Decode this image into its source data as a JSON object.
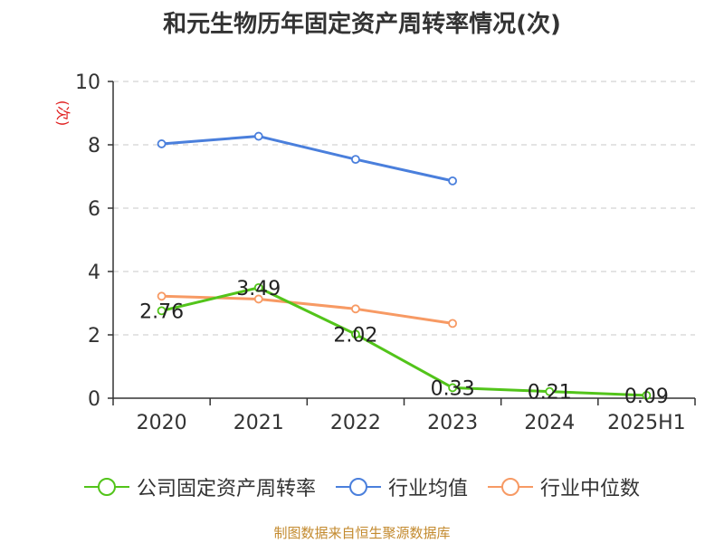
{
  "chart_data": {
    "type": "line",
    "title": "和元生物历年固定资产周转率情况(次)",
    "ylabel": "(次)",
    "xlabel": "",
    "categories": [
      "2020",
      "2021",
      "2022",
      "2023",
      "2024",
      "2025H1"
    ],
    "ylim": [
      0,
      10
    ],
    "yticks": [
      0,
      2,
      4,
      6,
      8,
      10
    ],
    "grid": true,
    "legend_position": "bottom",
    "series": [
      {
        "name": "公司固定资产周转率",
        "color": "#52c41a",
        "values": [
          2.76,
          3.49,
          2.02,
          0.33,
          0.21,
          0.09
        ],
        "labels": [
          "2.76",
          "3.49",
          "2.02",
          "0.33",
          "0.21",
          "0.09"
        ]
      },
      {
        "name": "行业均值",
        "color": "#4a7fdc",
        "values": [
          8.03,
          8.27,
          7.54,
          6.86,
          null,
          null
        ]
      },
      {
        "name": "行业中位数",
        "color": "#f79a64",
        "values": [
          3.22,
          3.13,
          2.82,
          2.36,
          null,
          null
        ]
      }
    ]
  },
  "footer": {
    "source": "制图数据来自恒生聚源数据库"
  },
  "colors": {
    "axis": "#333333",
    "grid": "#c8c8c8",
    "ylabel": "#e02020",
    "source": "#c38a2e"
  }
}
